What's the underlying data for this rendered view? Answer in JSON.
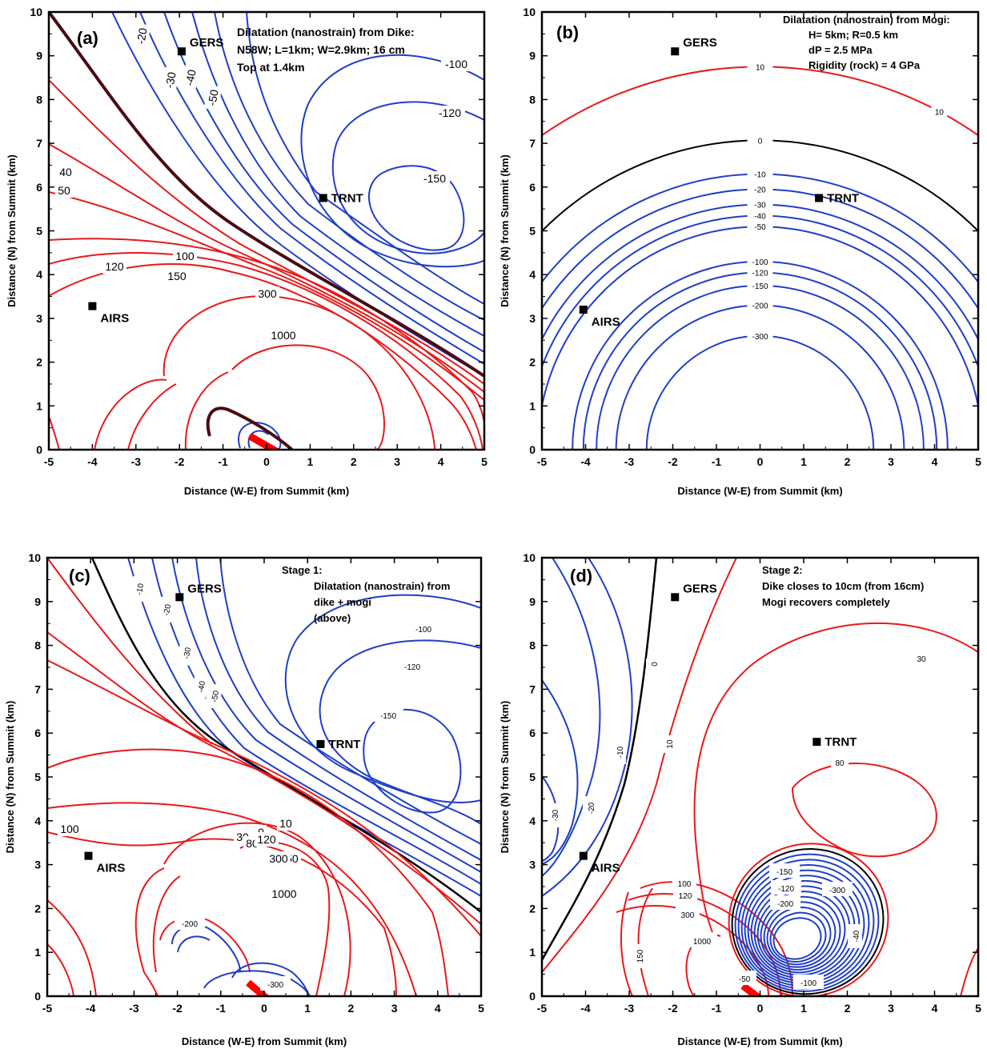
{
  "colors": {
    "positive": "#e8191b",
    "negative": "#1f3ec8",
    "zero": "#000000",
    "thick_zero": "#4a0b14",
    "dike": "#ff0000",
    "frame": "#000000"
  },
  "chart_data": [
    {
      "panel": "(a)",
      "type": "contour",
      "xlabel": "Distance (W-E) from Summit (km)",
      "ylabel": "Distance (N) from Summit (km)",
      "xlim": [
        -5,
        5
      ],
      "ylim": [
        0,
        10
      ],
      "xticks": [
        "-5",
        "-4",
        "-3",
        "-2",
        "-1",
        "0",
        "1",
        "2",
        "3",
        "4",
        "5"
      ],
      "yticks": [
        "0",
        "1",
        "2",
        "3",
        "4",
        "5",
        "6",
        "7",
        "8",
        "9",
        "10"
      ],
      "text": [
        "Dilatation (nanostrain) from Dike:",
        "N58W; L=1km; W=2.9km; 16 cm",
        "Top at 1.4km"
      ],
      "stations": [
        {
          "name": "GERS",
          "x": -1.95,
          "y": 9.1
        },
        {
          "name": "TRNT",
          "x": 1.3,
          "y": 5.75
        },
        {
          "name": "AIRS",
          "x": -4.0,
          "y": 3.28
        }
      ],
      "contour_labels": [
        "-20",
        "-30",
        "-40",
        "-50",
        "-100",
        "-120",
        "-150",
        "40",
        "50",
        "100",
        "120",
        "150",
        "300",
        "1000"
      ],
      "dike": {
        "x": [
          -0.15,
          0.45
        ],
        "y": [
          0.35,
          0.0
        ]
      }
    },
    {
      "panel": "(b)",
      "type": "contour",
      "xlabel": "Distance (W-E) from Summit (km)",
      "ylabel": "Distance (N) from Summit (km)",
      "xlim": [
        -5,
        5
      ],
      "ylim": [
        0,
        10
      ],
      "xticks": [
        "-5",
        "-4",
        "-3",
        "-2",
        "-1",
        "0",
        "1",
        "2",
        "3",
        "4",
        "5"
      ],
      "yticks": [
        "0",
        "1",
        "2",
        "3",
        "4",
        "5",
        "6",
        "7",
        "8",
        "9",
        "10"
      ],
      "text": [
        "Dilatation (nanostrain) from Mogi:",
        "H= 5km; R=0.5 km",
        "dP = 2.5 MPa",
        "Rigidity (rock) = 4 GPa"
      ],
      "stations": [
        {
          "name": "GERS",
          "x": -1.95,
          "y": 9.1
        },
        {
          "name": "TRNT",
          "x": 1.35,
          "y": 5.75
        },
        {
          "name": "AIRS",
          "x": -4.05,
          "y": 3.2
        }
      ],
      "contours": [
        {
          "level": "10",
          "radius": 8.75
        },
        {
          "level": "0",
          "radius": 7.07
        },
        {
          "level": "-10",
          "radius": 6.3
        },
        {
          "level": "-20",
          "radius": 5.95
        },
        {
          "level": "-30",
          "radius": 5.6
        },
        {
          "level": "-40",
          "radius": 5.35
        },
        {
          "level": "-50",
          "radius": 5.1
        },
        {
          "level": "-100",
          "radius": 4.3
        },
        {
          "level": "-120",
          "radius": 4.05
        },
        {
          "level": "-150",
          "radius": 3.75
        },
        {
          "level": "-200",
          "radius": 3.3
        },
        {
          "level": "-300",
          "radius": 2.6
        }
      ]
    },
    {
      "panel": "(c)",
      "type": "contour",
      "xlabel": "Distance (W-E) from Summit (km)",
      "ylabel": "Distance (N) from Summit (km)",
      "xlim": [
        -5,
        5
      ],
      "ylim": [
        0,
        10
      ],
      "xticks": [
        "-5",
        "-4",
        "-3",
        "-2",
        "-1",
        "0",
        "1",
        "2",
        "3",
        "4",
        "5"
      ],
      "yticks": [
        "0",
        "1",
        "2",
        "3",
        "4",
        "5",
        "6",
        "7",
        "8",
        "9",
        "10"
      ],
      "text": [
        "Stage 1:",
        "Dilatation (nanostrain) from",
        "dike + mogi",
        "(above)"
      ],
      "stations": [
        {
          "name": "GERS",
          "x": -1.95,
          "y": 9.1
        },
        {
          "name": "TRNT",
          "x": 1.3,
          "y": 5.75
        },
        {
          "name": "AIRS",
          "x": -4.05,
          "y": 3.2
        }
      ],
      "contour_labels": [
        "-10",
        "-20",
        "-30",
        "-40",
        "-50",
        "-100",
        "-120",
        "-150",
        "0",
        "10",
        "30",
        "80",
        "100",
        "120",
        "150",
        "300",
        "1000",
        "-200",
        "-300"
      ],
      "dike": {
        "x": [
          -0.15,
          0.45
        ],
        "y": [
          0.35,
          0.0
        ]
      }
    },
    {
      "panel": "(d)",
      "type": "contour",
      "xlabel": "Distance (W-E) from Summit (km)",
      "ylabel": "Distance (N) from Summit (km)",
      "xlim": [
        -5,
        5
      ],
      "ylim": [
        0,
        10
      ],
      "xticks": [
        "-5",
        "-4",
        "-3",
        "-2",
        "-1",
        "0",
        "1",
        "2",
        "3",
        "4",
        "5"
      ],
      "yticks": [
        "0",
        "1",
        "2",
        "3",
        "4",
        "5",
        "6",
        "7",
        "8",
        "9",
        "10"
      ],
      "text": [
        "Stage 2:",
        "Dike closes to 10cm (from 16cm)",
        "Mogi recovers completely"
      ],
      "stations": [
        {
          "name": "GERS",
          "x": -1.95,
          "y": 9.1
        },
        {
          "name": "TRNT",
          "x": 1.3,
          "y": 5.8
        },
        {
          "name": "AIRS",
          "x": -4.05,
          "y": 3.2
        }
      ],
      "contour_labels": [
        "0",
        "10",
        "-10",
        "-20",
        "-30",
        "30",
        "80",
        "100",
        "120",
        "150",
        "300",
        "1000",
        "-50",
        "-150",
        "-120",
        "-300",
        "-200",
        "-100",
        "-40"
      ],
      "dike": {
        "x": [
          -0.15,
          0.45
        ],
        "y": [
          0.35,
          0.0
        ]
      }
    }
  ]
}
